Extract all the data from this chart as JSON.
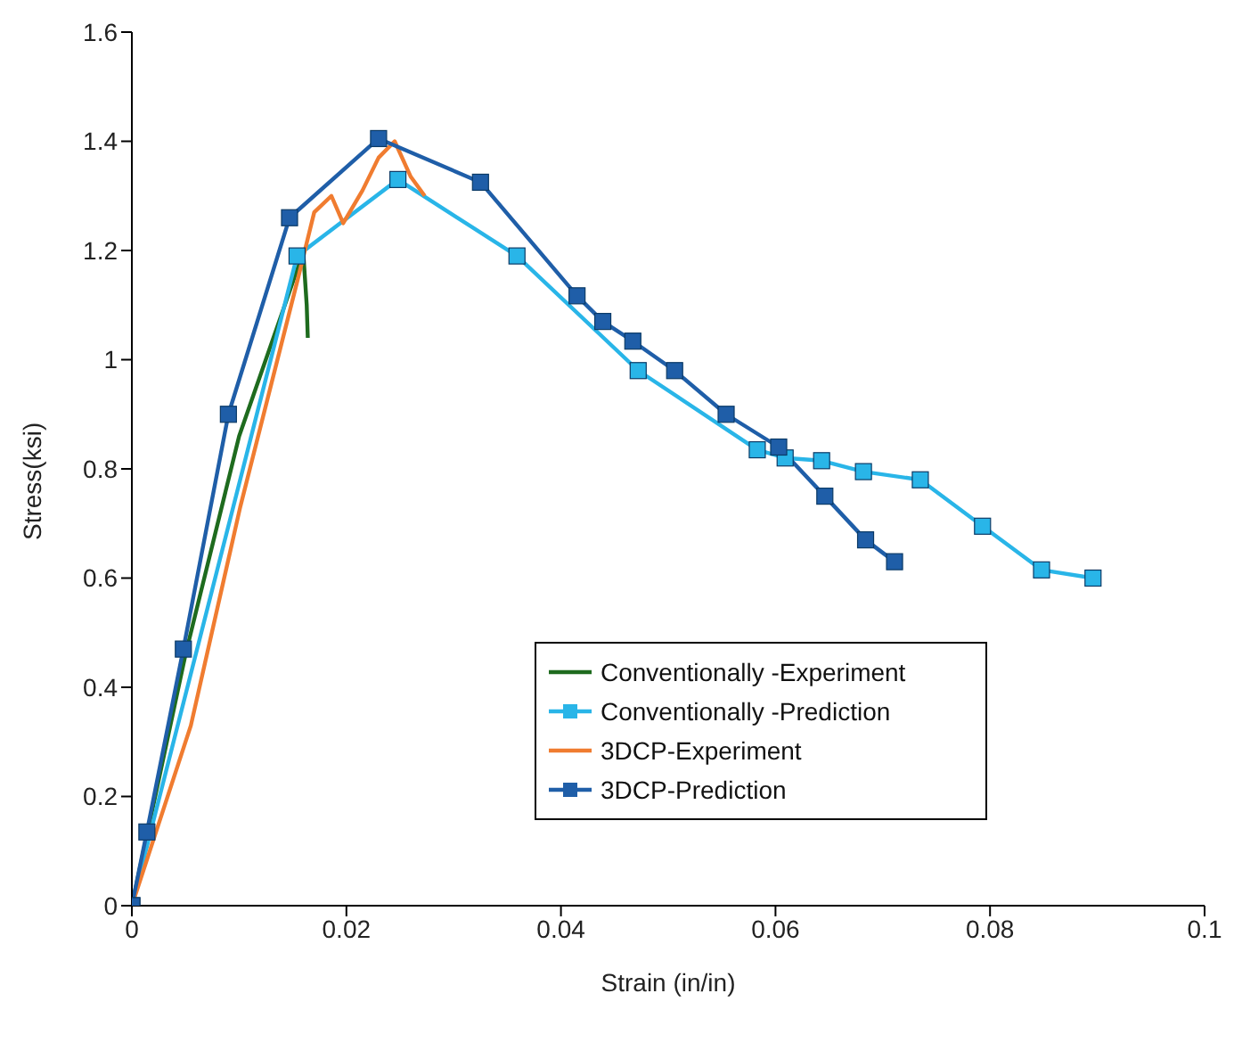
{
  "chart_data": {
    "type": "line",
    "xlabel": "Strain (in/in)",
    "ylabel": "Stress(ksi)",
    "xlim": [
      0,
      0.1
    ],
    "xticks": [
      0,
      0.02,
      0.04,
      0.06,
      0.08,
      0.1
    ],
    "ylim": [
      0,
      1.6
    ],
    "yticks": [
      0,
      0.2,
      0.4,
      0.6,
      0.8,
      1,
      1.2,
      1.4,
      1.6
    ],
    "grid": false,
    "legend": "bottom right",
    "series": [
      {
        "name": "Conventionally -Experiment",
        "color": "#1e6b1e",
        "marker": "none",
        "x": [
          0,
          0.005,
          0.01,
          0.0155,
          0.016,
          0.0163,
          0.0164
        ],
        "values": [
          0,
          0.46,
          0.86,
          1.17,
          1.19,
          1.1,
          1.04
        ]
      },
      {
        "name": "Conventionally -Prediction",
        "color": "#29b5e8",
        "marker": "square",
        "x": [
          0,
          0.0154,
          0.0248,
          0.0359,
          0.0472,
          0.0583,
          0.0609,
          0.0643,
          0.0682,
          0.0735,
          0.0793,
          0.0848,
          0.0896
        ],
        "values": [
          0,
          1.19,
          1.33,
          1.19,
          0.98,
          0.835,
          0.82,
          0.815,
          0.795,
          0.78,
          0.695,
          0.615,
          0.6
        ]
      },
      {
        "name": "3DCP-Experiment",
        "color": "#f07c30",
        "marker": "none",
        "x": [
          0,
          0.0055,
          0.0101,
          0.0155,
          0.017,
          0.0186,
          0.0197,
          0.0215,
          0.023,
          0.0245,
          0.026,
          0.0273
        ],
        "values": [
          0,
          0.33,
          0.73,
          1.15,
          1.27,
          1.3,
          1.25,
          1.31,
          1.37,
          1.4,
          1.335,
          1.3
        ]
      },
      {
        "name": "3DCP-Prediction",
        "color": "#1f5ea8",
        "marker": "square",
        "x": [
          0,
          0.0014,
          0.0048,
          0.009,
          0.0147,
          0.023,
          0.0325,
          0.0415,
          0.0439,
          0.0467,
          0.0506,
          0.0554,
          0.0603,
          0.0646,
          0.0684,
          0.0711
        ],
        "values": [
          0,
          0.135,
          0.47,
          0.9,
          1.26,
          1.405,
          1.325,
          1.117,
          1.07,
          1.034,
          0.98,
          0.9,
          0.84,
          0.75,
          0.67,
          0.63
        ]
      }
    ]
  }
}
